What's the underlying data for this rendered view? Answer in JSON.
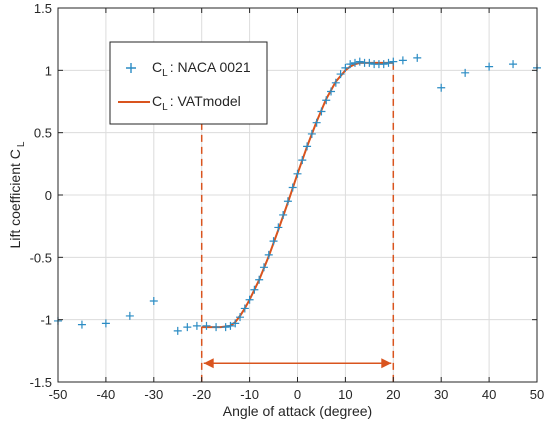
{
  "chart_data": {
    "type": "scatter",
    "xlabel": "Angle of attack (degree)",
    "ylabel_main": "Lift coefficient C",
    "ylabel_sub": "L",
    "xlim": [
      -50,
      50
    ],
    "ylim": [
      -1.5,
      1.5
    ],
    "xticks": [
      -50,
      -40,
      -30,
      -20,
      -10,
      0,
      10,
      20,
      30,
      40,
      50
    ],
    "yticks": [
      -1.5,
      -1,
      -0.5,
      0,
      0.5,
      1,
      1.5
    ],
    "grid": true,
    "legend_position": "top-left",
    "colors": {
      "naca": "#2b8cc4",
      "vat": "#d9541e"
    },
    "series": [
      {
        "name_main": "C",
        "name_sub": "L",
        "name_rest": ": NACA 0021",
        "kind": "points",
        "x": [
          -50,
          -45,
          -40,
          -35,
          -30,
          -25,
          -23,
          -21,
          -19,
          -17,
          -15,
          -14,
          -13,
          -12,
          -11,
          -10,
          -9,
          -8,
          -7,
          -6,
          -5,
          -4,
          -3,
          -2,
          -1,
          0,
          1,
          2,
          3,
          4,
          5,
          6,
          7,
          8,
          9,
          10,
          11,
          12,
          13,
          14,
          15,
          16,
          17,
          18,
          19,
          20,
          22,
          25,
          30,
          35,
          40,
          45,
          50
        ],
        "y": [
          -1.01,
          -1.04,
          -1.03,
          -0.97,
          -0.85,
          -1.09,
          -1.06,
          -1.05,
          -1.05,
          -1.06,
          -1.06,
          -1.05,
          -1.03,
          -0.98,
          -0.91,
          -0.84,
          -0.76,
          -0.68,
          -0.58,
          -0.48,
          -0.37,
          -0.26,
          -0.16,
          -0.05,
          0.06,
          0.17,
          0.28,
          0.39,
          0.49,
          0.58,
          0.67,
          0.76,
          0.83,
          0.9,
          0.97,
          1.02,
          1.05,
          1.06,
          1.07,
          1.06,
          1.06,
          1.05,
          1.05,
          1.05,
          1.06,
          1.07,
          1.08,
          1.1,
          0.86,
          0.98,
          1.03,
          1.05,
          1.02
        ]
      },
      {
        "name_main": "C",
        "name_sub": "L",
        "name_rest": ": VATmodel",
        "kind": "line",
        "x": [
          -20,
          -18,
          -16,
          -14,
          -13,
          -12,
          -11,
          -10,
          -8,
          -6,
          -4,
          -2,
          0,
          2,
          4,
          6,
          8,
          10,
          11,
          12,
          13,
          14,
          16,
          18,
          20
        ],
        "y": [
          -1.06,
          -1.06,
          -1.06,
          -1.05,
          -1.02,
          -0.97,
          -0.91,
          -0.84,
          -0.68,
          -0.49,
          -0.28,
          -0.06,
          0.17,
          0.39,
          0.59,
          0.77,
          0.91,
          1.0,
          1.03,
          1.05,
          1.06,
          1.06,
          1.06,
          1.06,
          1.06
        ]
      }
    ],
    "annotations": {
      "vlines_x": [
        -20,
        20
      ],
      "arrow_x": [
        -20,
        20
      ],
      "arrow_y": -1.35
    }
  }
}
